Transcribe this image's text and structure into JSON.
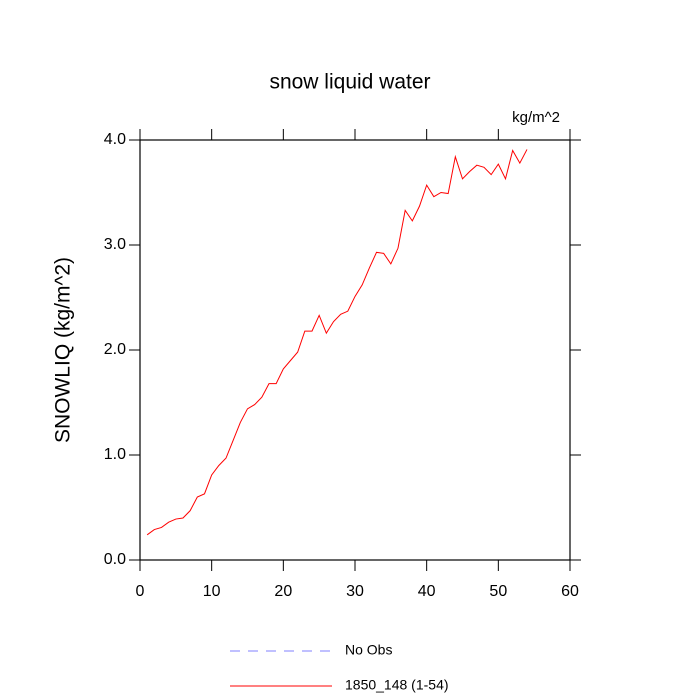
{
  "chart_data": {
    "type": "line",
    "title": "snow liquid water",
    "units": "kg/m^2",
    "y_label": "SNOWLIQ  (kg/m^2)",
    "x": [
      1,
      2,
      3,
      4,
      5,
      6,
      7,
      8,
      9,
      10,
      11,
      12,
      13,
      14,
      15,
      16,
      17,
      18,
      19,
      20,
      21,
      22,
      23,
      24,
      25,
      26,
      27,
      28,
      29,
      30,
      31,
      32,
      33,
      34,
      35,
      36,
      37,
      38,
      39,
      40,
      41,
      42,
      43,
      44,
      45,
      46,
      47,
      48,
      49,
      50,
      51,
      52,
      53,
      54
    ],
    "series": [
      {
        "name": "No Obs",
        "color": "#8080ff",
        "dashed": true,
        "values": [
          null,
          null,
          null,
          null,
          null,
          null,
          null,
          null,
          null,
          null,
          null,
          null,
          null,
          null,
          null,
          null,
          null,
          null,
          null,
          null,
          null,
          null,
          null,
          null,
          null,
          null,
          null,
          null,
          null,
          null,
          null,
          null,
          null,
          null,
          null,
          null,
          null,
          null,
          null,
          null,
          null,
          null,
          null,
          null,
          null,
          null,
          null,
          null,
          null,
          null,
          null,
          null,
          null,
          null
        ]
      },
      {
        "name": "1850_148 (1-54)",
        "color": "#ff0000",
        "dashed": false,
        "values": [
          0.24,
          0.29,
          0.31,
          0.36,
          0.39,
          0.4,
          0.47,
          0.6,
          0.63,
          0.81,
          0.9,
          0.97,
          1.14,
          1.31,
          1.44,
          1.48,
          1.55,
          1.68,
          1.68,
          1.82,
          1.9,
          1.98,
          2.18,
          2.18,
          2.33,
          2.16,
          2.27,
          2.34,
          2.37,
          2.51,
          2.62,
          2.78,
          2.93,
          2.92,
          2.82,
          2.97,
          3.33,
          3.23,
          3.37,
          3.57,
          3.46,
          3.5,
          3.49,
          3.84,
          3.63,
          3.7,
          3.76,
          3.74,
          3.67,
          3.77,
          3.63,
          3.9,
          3.78,
          3.91
        ]
      }
    ],
    "xlim": [
      0,
      60
    ],
    "xticks": [
      0,
      10,
      20,
      30,
      40,
      50,
      60
    ],
    "ylim": [
      0,
      4
    ],
    "yticks": [
      {
        "value": 0,
        "label": "0.0"
      },
      {
        "value": 1,
        "label": "1.0"
      },
      {
        "value": 2,
        "label": "2.0"
      },
      {
        "value": 3,
        "label": "3.0"
      },
      {
        "value": 4,
        "label": "4.0"
      }
    ]
  }
}
